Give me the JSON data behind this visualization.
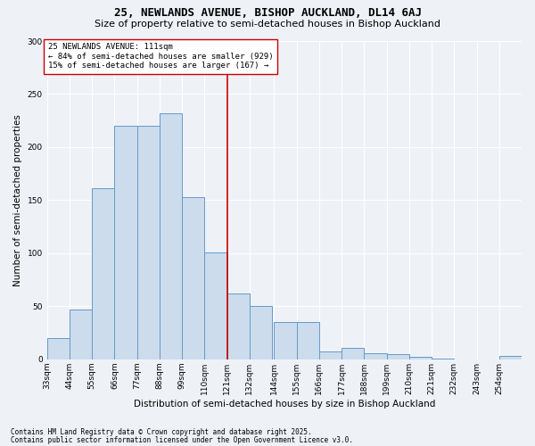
{
  "title": "25, NEWLANDS AVENUE, BISHOP AUCKLAND, DL14 6AJ",
  "subtitle": "Size of property relative to semi-detached houses in Bishop Auckland",
  "xlabel": "Distribution of semi-detached houses by size in Bishop Auckland",
  "ylabel": "Number of semi-detached properties",
  "footnote1": "Contains HM Land Registry data © Crown copyright and database right 2025.",
  "footnote2": "Contains public sector information licensed under the Open Government Licence v3.0.",
  "annotation_line1": "25 NEWLANDS AVENUE: 111sqm",
  "annotation_line2": "← 84% of semi-detached houses are smaller (929)",
  "annotation_line3": "15% of semi-detached houses are larger (167) →",
  "bar_color": "#ccdcec",
  "bar_edge_color": "#6699cc",
  "vline_color": "#cc0000",
  "categories": [
    "33sqm",
    "44sqm",
    "55sqm",
    "66sqm",
    "77sqm",
    "88sqm",
    "99sqm",
    "110sqm",
    "121sqm",
    "132sqm",
    "144sqm",
    "155sqm",
    "166sqm",
    "177sqm",
    "188sqm",
    "199sqm",
    "210sqm",
    "221sqm",
    "232sqm",
    "243sqm",
    "254sqm"
  ],
  "bin_starts": [
    33,
    44,
    55,
    66,
    77,
    88,
    99,
    110,
    121,
    132,
    144,
    155,
    166,
    177,
    188,
    199,
    210,
    221,
    232,
    243,
    254
  ],
  "bin_width": 11,
  "values": [
    20,
    47,
    161,
    220,
    220,
    232,
    153,
    101,
    62,
    50,
    35,
    35,
    7,
    11,
    6,
    5,
    2,
    1,
    0,
    0,
    3
  ],
  "vline_pos": 110,
  "ylim": [
    0,
    300
  ],
  "yticks": [
    0,
    50,
    100,
    150,
    200,
    250,
    300
  ],
  "bg_color": "#eef2f7",
  "grid_color": "#ffffff",
  "title_fontsize": 9,
  "subtitle_fontsize": 8,
  "ylabel_fontsize": 7.5,
  "xlabel_fontsize": 7.5,
  "tick_fontsize": 6.5,
  "annot_fontsize": 6.5,
  "footnote_fontsize": 5.5
}
